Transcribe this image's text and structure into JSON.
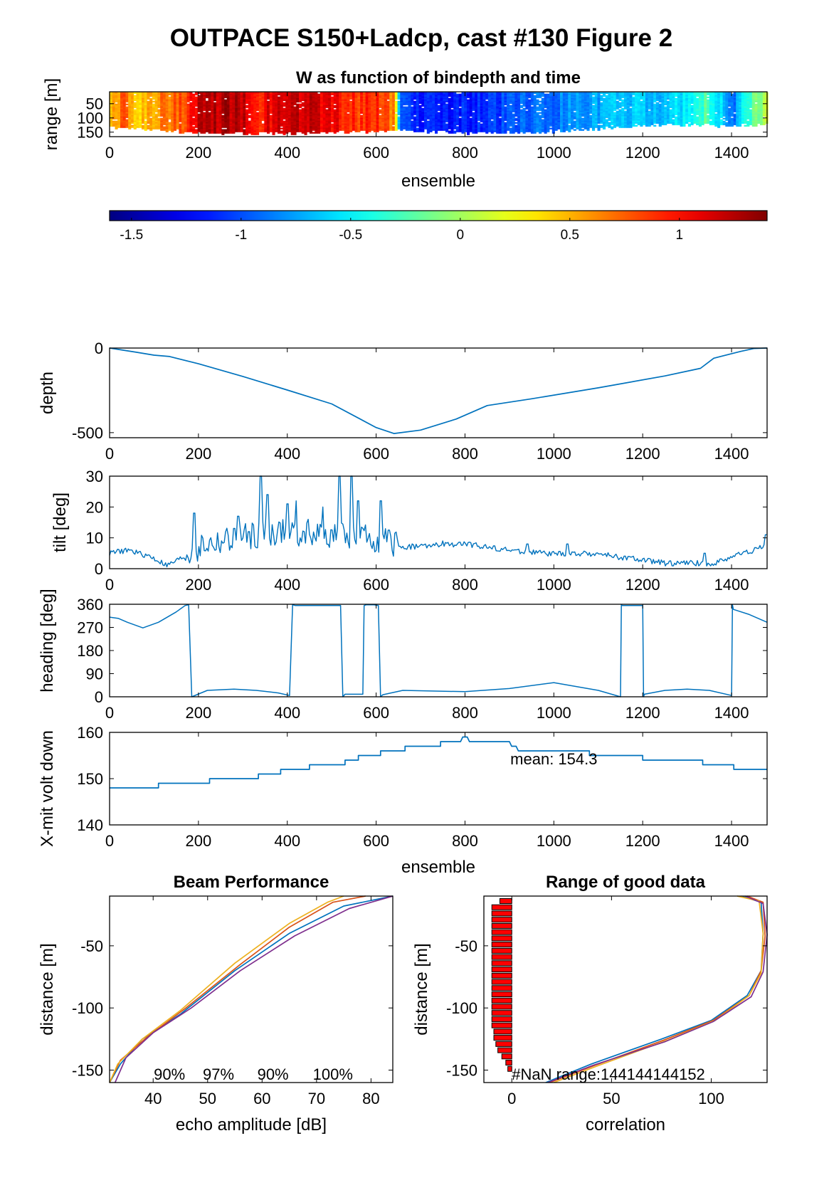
{
  "figure_title": "OUTPACE S150+Ladcp, cast #130 Figure 2",
  "colors": {
    "line": "#0072BD",
    "axis": "#000000",
    "nan_bar": "#ff0000",
    "beam_colors": [
      "#0072BD",
      "#D95319",
      "#EDB120",
      "#7E2F8E"
    ]
  },
  "chart_data": [
    {
      "id": "w-image",
      "type": "heatmap",
      "title": "W as function of bindepth and time",
      "xlabel": "ensemble",
      "ylabel": "range [m]",
      "xlim": [
        0,
        1480
      ],
      "ylim": [
        166,
        8
      ],
      "xticks": [
        0,
        200,
        400,
        600,
        800,
        1000,
        1200,
        1400
      ],
      "yticks": [
        50,
        100,
        150
      ],
      "color_limits": [
        -1.6,
        1.4
      ],
      "colorbar_ticks": [
        -1.5,
        -1,
        -0.5,
        0,
        0.5,
        1
      ],
      "w_profile": [
        [
          0,
          0.45
        ],
        [
          30,
          0.75
        ],
        [
          60,
          0.4
        ],
        [
          100,
          0.6
        ],
        [
          140,
          0.7
        ],
        [
          180,
          0.95
        ],
        [
          200,
          1.2
        ],
        [
          260,
          1.25
        ],
        [
          300,
          1.2
        ],
        [
          340,
          0.95
        ],
        [
          380,
          1.25
        ],
        [
          420,
          1.2
        ],
        [
          460,
          1.15
        ],
        [
          500,
          1.05
        ],
        [
          560,
          0.85
        ],
        [
          600,
          0.95
        ],
        [
          640,
          0.6
        ],
        [
          650,
          -1.0
        ],
        [
          700,
          -1.2
        ],
        [
          800,
          -1.15
        ],
        [
          900,
          -1.0
        ],
        [
          1000,
          -0.85
        ],
        [
          1100,
          -0.75
        ],
        [
          1200,
          -0.65
        ],
        [
          1300,
          -0.55
        ],
        [
          1340,
          -0.2
        ],
        [
          1400,
          -0.9
        ],
        [
          1440,
          -0.3
        ],
        [
          1480,
          0.1
        ]
      ],
      "max_range": [
        [
          0,
          138
        ],
        [
          200,
          160
        ],
        [
          400,
          162
        ],
        [
          600,
          152
        ],
        [
          650,
          148
        ],
        [
          800,
          160
        ],
        [
          1000,
          155
        ],
        [
          1200,
          132
        ],
        [
          1300,
          128
        ],
        [
          1400,
          135
        ],
        [
          1480,
          130
        ]
      ]
    },
    {
      "id": "depth",
      "type": "line",
      "xlabel": "",
      "ylabel": "depth",
      "xlim": [
        0,
        1480
      ],
      "ylim": [
        -530,
        0
      ],
      "xticks": [
        0,
        200,
        400,
        600,
        800,
        1000,
        1200,
        1400
      ],
      "yticks": [
        0,
        -500
      ],
      "x": [
        0,
        60,
        100,
        135,
        200,
        300,
        400,
        500,
        600,
        640,
        700,
        780,
        850,
        950,
        1100,
        1250,
        1330,
        1360,
        1420,
        1450,
        1480
      ],
      "y": [
        0,
        -25,
        -42,
        -50,
        -93,
        -168,
        -248,
        -330,
        -470,
        -505,
        -485,
        -420,
        -340,
        -300,
        -235,
        -165,
        -120,
        -60,
        -20,
        -3,
        0
      ]
    },
    {
      "id": "tilt",
      "type": "line",
      "xlabel": "",
      "ylabel": "tilt [deg]",
      "xlim": [
        0,
        1480
      ],
      "ylim": [
        0,
        30
      ],
      "xticks": [
        0,
        200,
        400,
        600,
        800,
        1000,
        1200,
        1400
      ],
      "yticks": [
        0,
        10,
        20,
        30
      ],
      "baseline": [
        [
          0,
          5
        ],
        [
          40,
          6
        ],
        [
          90,
          4
        ],
        [
          130,
          1
        ],
        [
          170,
          4
        ],
        [
          200,
          7
        ],
        [
          300,
          10
        ],
        [
          400,
          12
        ],
        [
          500,
          11
        ],
        [
          620,
          9
        ],
        [
          660,
          7
        ],
        [
          800,
          8
        ],
        [
          900,
          6
        ],
        [
          1000,
          4.8
        ],
        [
          1100,
          4.8
        ],
        [
          1160,
          3.5
        ],
        [
          1250,
          1.8
        ],
        [
          1320,
          1.8
        ],
        [
          1360,
          1.5
        ],
        [
          1400,
          4
        ],
        [
          1450,
          6
        ],
        [
          1480,
          8
        ]
      ],
      "spikes": [
        [
          190,
          18
        ],
        [
          290,
          17
        ],
        [
          340,
          30
        ],
        [
          355,
          24
        ],
        [
          400,
          21
        ],
        [
          420,
          22
        ],
        [
          480,
          20
        ],
        [
          518,
          30
        ],
        [
          545,
          30
        ],
        [
          560,
          22
        ],
        [
          610,
          22
        ],
        [
          750,
          9
        ],
        [
          940,
          8
        ],
        [
          1030,
          8
        ],
        [
          1340,
          5
        ],
        [
          1478,
          11
        ]
      ]
    },
    {
      "id": "heading",
      "type": "line",
      "xlabel": "",
      "ylabel": "heading [deg]",
      "xlim": [
        0,
        1480
      ],
      "ylim": [
        0,
        360
      ],
      "xticks": [
        0,
        200,
        400,
        600,
        800,
        1000,
        1200,
        1400
      ],
      "yticks": [
        0,
        90,
        180,
        270,
        360
      ],
      "x": [
        0,
        20,
        40,
        75,
        110,
        150,
        170,
        178,
        185,
        220,
        280,
        330,
        380,
        405,
        412,
        418,
        520,
        525,
        530,
        570,
        573,
        578,
        595,
        605,
        610,
        615,
        660,
        800,
        900,
        1000,
        1100,
        1150,
        1152,
        1154,
        1200,
        1202,
        1204,
        1250,
        1300,
        1350,
        1400,
        1402,
        1404,
        1440,
        1480
      ],
      "y": [
        310,
        305,
        290,
        268,
        290,
        330,
        355,
        358,
        0,
        25,
        30,
        25,
        15,
        5,
        358,
        355,
        355,
        0,
        10,
        10,
        355,
        358,
        358,
        355,
        0,
        8,
        25,
        20,
        32,
        55,
        25,
        0,
        358,
        355,
        355,
        0,
        10,
        25,
        30,
        25,
        5,
        358,
        340,
        320,
        290
      ]
    },
    {
      "id": "xmit-volt",
      "type": "line",
      "xlabel": "ensemble",
      "ylabel": "X-mit volt down",
      "xlim": [
        0,
        1480
      ],
      "ylim": [
        140,
        160
      ],
      "xticks": [
        0,
        200,
        400,
        600,
        800,
        1000,
        1200,
        1400
      ],
      "yticks": [
        140,
        150,
        160
      ],
      "annotation": "mean: 154.3",
      "x": [
        0,
        110,
        110,
        225,
        225,
        335,
        335,
        385,
        385,
        450,
        450,
        530,
        530,
        560,
        560,
        610,
        610,
        665,
        665,
        745,
        745,
        790,
        795,
        805,
        810,
        900,
        905,
        915,
        920,
        1080,
        1080,
        1200,
        1200,
        1335,
        1335,
        1405,
        1405,
        1480
      ],
      "y": [
        148,
        148,
        149,
        149,
        150,
        150,
        151,
        151,
        152,
        152,
        153,
        153,
        154,
        154,
        155,
        155,
        156,
        156,
        157,
        157,
        158,
        158,
        159,
        159,
        158,
        158,
        157,
        157,
        156,
        156,
        155,
        155,
        154,
        154,
        153,
        153,
        152,
        152
      ]
    },
    {
      "id": "beam-performance",
      "type": "line",
      "title": "Beam Performance",
      "xlabel": "echo amplitude [dB]",
      "ylabel": "distance [m]",
      "xlim": [
        32,
        84
      ],
      "ylim": [
        -160,
        -10
      ],
      "xticks": [
        40,
        50,
        60,
        70,
        80
      ],
      "yticks": [
        -50,
        -100,
        -150
      ],
      "beam_labels": [
        "90%",
        "97%",
        "90%",
        "100%"
      ],
      "series": [
        {
          "x": [
            32,
            34,
            38,
            45,
            55,
            65,
            75,
            84
          ],
          "y": [
            -160,
            -145,
            -125,
            -105,
            -70,
            -40,
            -18,
            -10
          ]
        },
        {
          "x": [
            32,
            34,
            39,
            46,
            56,
            65,
            73,
            79
          ],
          "y": [
            -160,
            -142,
            -123,
            -100,
            -65,
            -35,
            -15,
            -10
          ]
        },
        {
          "x": [
            32,
            33.5,
            38,
            45,
            55,
            65,
            72,
            75
          ],
          "y": [
            -160,
            -145,
            -125,
            -102,
            -64,
            -32,
            -15,
            -10
          ]
        },
        {
          "x": [
            33,
            35,
            40,
            47,
            56,
            66,
            76,
            84
          ],
          "y": [
            -160,
            -140,
            -120,
            -100,
            -70,
            -42,
            -20,
            -10
          ]
        }
      ]
    },
    {
      "id": "range-good-data",
      "type": "line",
      "title": "Range of good data",
      "xlabel": "correlation",
      "ylabel": "distance [m]",
      "xlim": [
        -14,
        128
      ],
      "ylim": [
        -160,
        -10
      ],
      "xticks": [
        0,
        50,
        100
      ],
      "yticks": [
        -50,
        -100,
        -150
      ],
      "annotation": "#NaN range:144144144152",
      "nan_bars": [
        {
          "depth": -14,
          "width": 6
        },
        {
          "depth": -19,
          "width": 10
        },
        {
          "depth": -24,
          "width": 10
        },
        {
          "depth": -29,
          "width": 10
        },
        {
          "depth": -34,
          "width": 10
        },
        {
          "depth": -39,
          "width": 10
        },
        {
          "depth": -44,
          "width": 10
        },
        {
          "depth": -49,
          "width": 10
        },
        {
          "depth": -54,
          "width": 10
        },
        {
          "depth": -59,
          "width": 10
        },
        {
          "depth": -64,
          "width": 10
        },
        {
          "depth": -69,
          "width": 10
        },
        {
          "depth": -74,
          "width": 10
        },
        {
          "depth": -79,
          "width": 10
        },
        {
          "depth": -84,
          "width": 10
        },
        {
          "depth": -89,
          "width": 10
        },
        {
          "depth": -94,
          "width": 10
        },
        {
          "depth": -99,
          "width": 10
        },
        {
          "depth": -104,
          "width": 10
        },
        {
          "depth": -109,
          "width": 10
        },
        {
          "depth": -114,
          "width": 10
        },
        {
          "depth": -119,
          "width": 9
        },
        {
          "depth": -124,
          "width": 9
        },
        {
          "depth": -129,
          "width": 8
        },
        {
          "depth": -134,
          "width": 7
        },
        {
          "depth": -139,
          "width": 5
        },
        {
          "depth": -144,
          "width": 3
        },
        {
          "depth": -149,
          "width": 2
        }
      ],
      "series": [
        {
          "x": [
            17,
            40,
            75,
            100,
            118,
            125,
            126,
            125,
            115
          ],
          "y": [
            -160,
            -145,
            -125,
            -110,
            -90,
            -70,
            -40,
            -15,
            -10
          ]
        },
        {
          "x": [
            19,
            42,
            76,
            101,
            119,
            125,
            127,
            126,
            118
          ],
          "y": [
            -160,
            -146,
            -126,
            -110,
            -90,
            -70,
            -42,
            -15,
            -10
          ]
        },
        {
          "x": [
            21,
            44,
            78,
            102,
            119,
            125,
            126,
            124,
            113
          ],
          "y": [
            -160,
            -146,
            -126,
            -110,
            -90,
            -72,
            -40,
            -14,
            -10
          ]
        },
        {
          "x": [
            18,
            41,
            77,
            101,
            120,
            126,
            128,
            126,
            117
          ],
          "y": [
            -160,
            -146,
            -127,
            -111,
            -91,
            -71,
            -41,
            -16,
            -10
          ]
        }
      ]
    }
  ]
}
